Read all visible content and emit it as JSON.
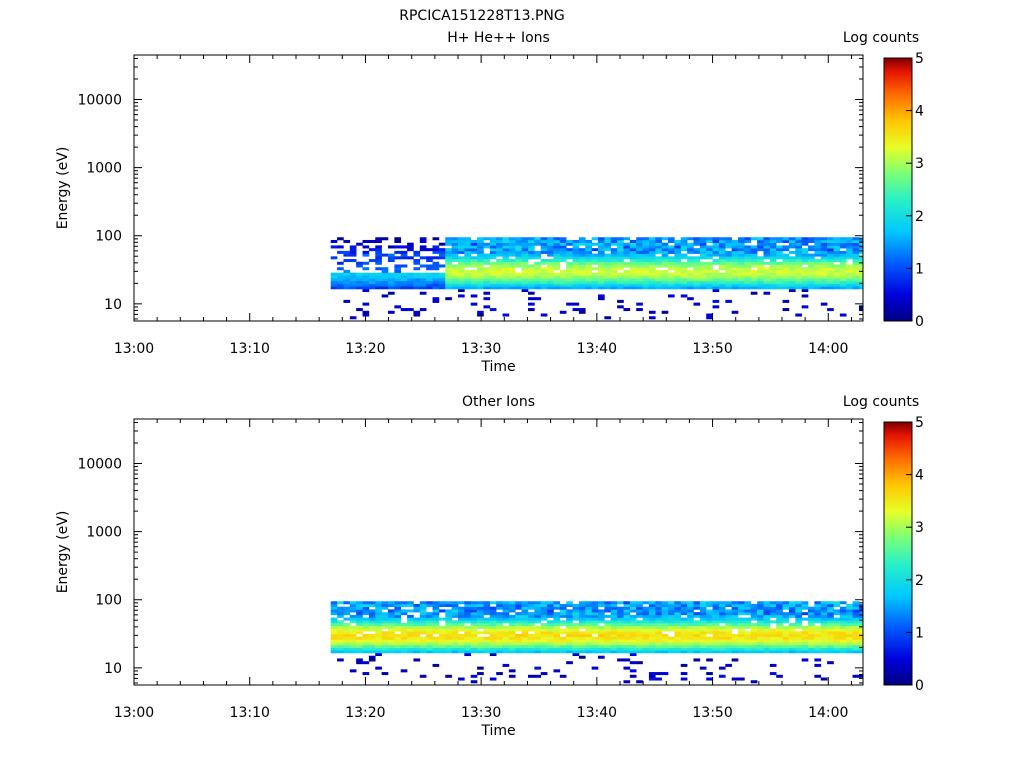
{
  "figure_title": "RPCICA151228T13.PNG",
  "chart_data": [
    {
      "type": "heatmap",
      "title": "H+ He++ Ions",
      "xlabel": "Time",
      "ylabel": "Energy (eV)",
      "x_scale": "time",
      "xlim": [
        "13:00",
        "14:03"
      ],
      "x_ticks": [
        "13:00",
        "13:10",
        "13:20",
        "13:30",
        "13:40",
        "13:50",
        "14:00"
      ],
      "y_scale": "log",
      "ylim": [
        5.6,
        45000
      ],
      "y_ticks": [
        "10",
        "100",
        "1000",
        "10000"
      ],
      "colorbar": {
        "label": "Log counts",
        "range": [
          0,
          5
        ],
        "ticks": [
          "0",
          "1",
          "2",
          "3",
          "4",
          "5"
        ],
        "colormap": "rainbow"
      },
      "data_start": "13:17",
      "data_end": "14:03",
      "energy_band_eV": [
        6,
        95
      ],
      "peak_energy_eV": 30,
      "peak_log_counts": 3.2
    },
    {
      "type": "heatmap",
      "title": "Other Ions",
      "xlabel": "Time",
      "ylabel": "Energy (eV)",
      "x_scale": "time",
      "xlim": [
        "13:00",
        "14:03"
      ],
      "x_ticks": [
        "13:00",
        "13:10",
        "13:20",
        "13:30",
        "13:40",
        "13:50",
        "14:00"
      ],
      "y_scale": "log",
      "ylim": [
        5.6,
        45000
      ],
      "y_ticks": [
        "10",
        "100",
        "1000",
        "10000"
      ],
      "colorbar": {
        "label": "Log counts",
        "range": [
          0,
          5
        ],
        "ticks": [
          "0",
          "1",
          "2",
          "3",
          "4",
          "5"
        ],
        "colormap": "rainbow"
      },
      "data_start": "13:17",
      "data_end": "14:03",
      "energy_band_eV": [
        6,
        95
      ],
      "peak_energy_eV": 30,
      "peak_log_counts": 3.6
    }
  ]
}
